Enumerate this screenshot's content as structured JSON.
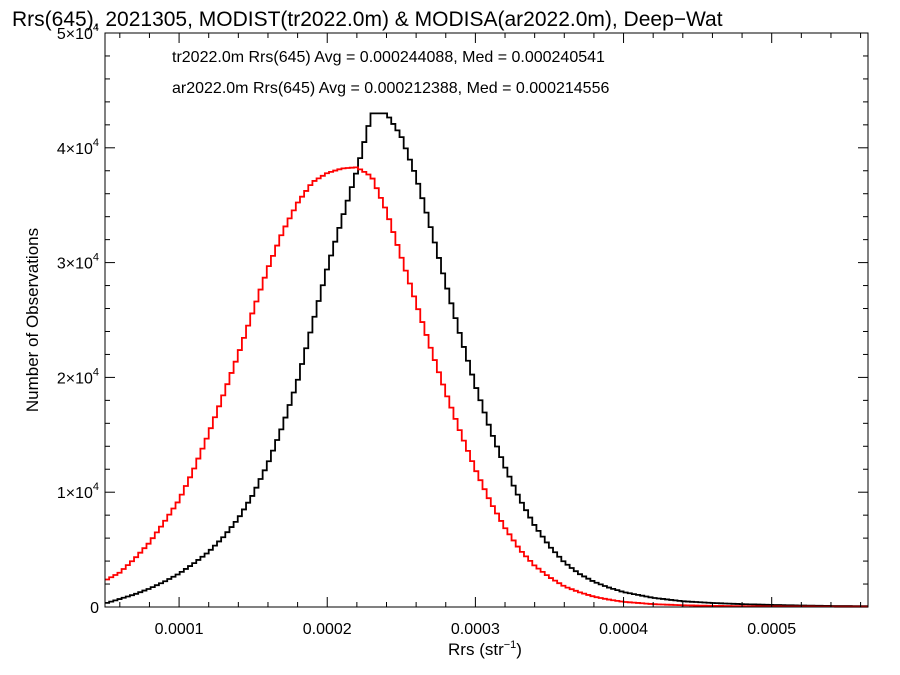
{
  "chart_data": {
    "type": "line",
    "title": "Rrs(645), 2021305, MODIST(tr2022.0m) & MODISA(ar2022.0m), Deep−Wat",
    "xlabel": "Rrs (str",
    "xlabel_sup": "−1",
    "xlabel_end": ")",
    "ylabel": "Number of Observations",
    "xlim": [
      5e-05,
      0.000565
    ],
    "ylim": [
      0,
      50000
    ],
    "x_ticks": [
      {
        "value": 0.0001,
        "label": "0.0001"
      },
      {
        "value": 0.0002,
        "label": "0.0002"
      },
      {
        "value": 0.0003,
        "label": "0.0003"
      },
      {
        "value": 0.0004,
        "label": "0.0004"
      },
      {
        "value": 0.0005,
        "label": "0.0005"
      }
    ],
    "y_ticks": [
      {
        "value": 0,
        "mant": "0",
        "sup": ""
      },
      {
        "value": 10000,
        "mant": "1×10",
        "sup": "4"
      },
      {
        "value": 20000,
        "mant": "2×10",
        "sup": "4"
      },
      {
        "value": 30000,
        "mant": "3×10",
        "sup": "4"
      },
      {
        "value": 40000,
        "mant": "4×10",
        "sup": "4"
      },
      {
        "value": 50000,
        "mant": "5×10",
        "sup": "4"
      }
    ],
    "annotations": [
      {
        "text": "tr2022.0m Rrs(645) Avg = 0.000244088, Med = 0.000240541",
        "color": "#000000"
      },
      {
        "text": "ar2022.0m Rrs(645) Avg = 0.000212388, Med = 0.000214556",
        "color": "#ff0000"
      }
    ],
    "series": [
      {
        "color": "#000000",
        "points": [
          [
            5e-05,
            300
          ],
          [
            6e-05,
            700
          ],
          [
            7e-05,
            1100
          ],
          [
            8e-05,
            1600
          ],
          [
            9e-05,
            2200
          ],
          [
            0.0001,
            2900
          ],
          [
            0.00011,
            3800
          ],
          [
            0.00012,
            4800
          ],
          [
            0.00013,
            6100
          ],
          [
            0.00014,
            7700
          ],
          [
            0.00015,
            9800
          ],
          [
            0.00016,
            12500
          ],
          [
            0.00017,
            15800
          ],
          [
            0.00018,
            19700
          ],
          [
            0.00019,
            24600
          ],
          [
            0.0002,
            29500
          ],
          [
            0.00021,
            33800
          ],
          [
            0.00022,
            38000
          ],
          [
            0.00023,
            43000
          ],
          [
            0.00024,
            43000
          ],
          [
            0.00025,
            41000
          ],
          [
            0.00026,
            37500
          ],
          [
            0.00027,
            33000
          ],
          [
            0.00028,
            28200
          ],
          [
            0.00029,
            23600
          ],
          [
            0.0003,
            19300
          ],
          [
            0.00031,
            15500
          ],
          [
            0.00032,
            12200
          ],
          [
            0.00033,
            9400
          ],
          [
            0.00034,
            7100
          ],
          [
            0.00035,
            5300
          ],
          [
            0.00036,
            3900
          ],
          [
            0.00037,
            2900
          ],
          [
            0.00038,
            2200
          ],
          [
            0.00039,
            1700
          ],
          [
            0.0004,
            1300
          ],
          [
            0.00042,
            800
          ],
          [
            0.00044,
            500
          ],
          [
            0.00046,
            350
          ],
          [
            0.00048,
            250
          ],
          [
            0.0005,
            180
          ],
          [
            0.00052,
            130
          ],
          [
            0.00054,
            90
          ],
          [
            0.000565,
            70
          ]
        ]
      },
      {
        "color": "#ff0000",
        "points": [
          [
            5e-05,
            2300
          ],
          [
            6e-05,
            3000
          ],
          [
            7e-05,
            4200
          ],
          [
            8e-05,
            5600
          ],
          [
            9e-05,
            7400
          ],
          [
            0.0001,
            9300
          ],
          [
            0.00011,
            12000
          ],
          [
            0.00012,
            15100
          ],
          [
            0.00013,
            18500
          ],
          [
            0.00014,
            22000
          ],
          [
            0.00015,
            25800
          ],
          [
            0.00016,
            29500
          ],
          [
            0.00017,
            32700
          ],
          [
            0.00018,
            35200
          ],
          [
            0.00019,
            37000
          ],
          [
            0.0002,
            37800
          ],
          [
            0.00021,
            38200
          ],
          [
            0.00022,
            38300
          ],
          [
            0.00023,
            37500
          ],
          [
            0.00024,
            34500
          ],
          [
            0.00025,
            30500
          ],
          [
            0.00026,
            26500
          ],
          [
            0.00027,
            22500
          ],
          [
            0.00028,
            18700
          ],
          [
            0.00029,
            15200
          ],
          [
            0.0003,
            12000
          ],
          [
            0.00031,
            9200
          ],
          [
            0.00032,
            6900
          ],
          [
            0.00033,
            5000
          ],
          [
            0.00034,
            3600
          ],
          [
            0.00035,
            2600
          ],
          [
            0.00036,
            1800
          ],
          [
            0.00037,
            1300
          ],
          [
            0.00038,
            900
          ],
          [
            0.00039,
            650
          ],
          [
            0.0004,
            450
          ],
          [
            0.00042,
            250
          ],
          [
            0.00044,
            150
          ],
          [
            0.00046,
            100
          ],
          [
            0.00048,
            70
          ],
          [
            0.0005,
            50
          ],
          [
            0.00052,
            40
          ],
          [
            0.00054,
            30
          ],
          [
            0.000565,
            25
          ]
        ]
      }
    ]
  }
}
